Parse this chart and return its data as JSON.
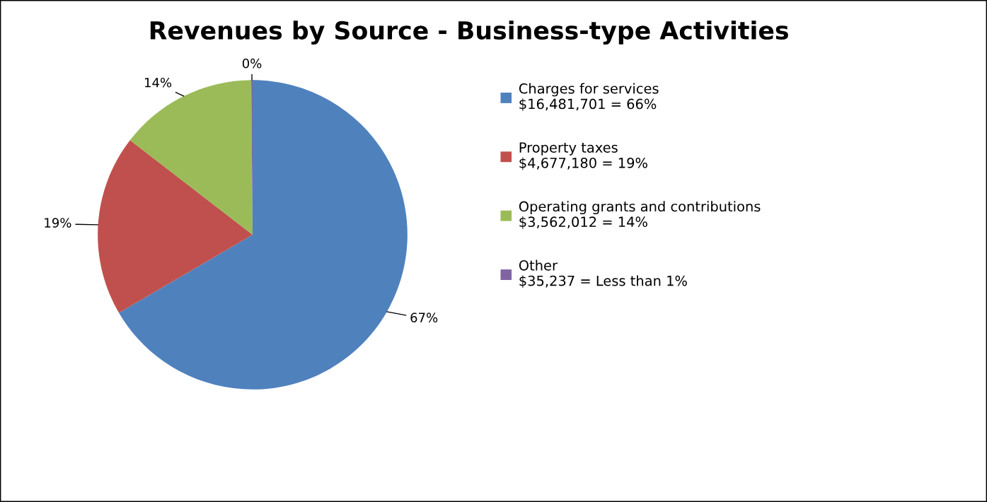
{
  "chart_data": {
    "type": "pie",
    "title": "Revenues by Source - Business-type Activities",
    "categories": [
      "Charges for services\n$16,481,701 = 66%",
      "Property taxes\n$4,677,180 = 19%",
      "Operating grants and contributions\n$3,562,012 = 14%",
      "Other\n$35,237 = Less than 1%"
    ],
    "values": [
      66.58,
      18.89,
      14.39,
      0.14
    ],
    "colors": [
      "#4f81bd",
      "#c0504d",
      "#9bbb59",
      "#8064a2"
    ],
    "value_labels": [
      "67%",
      "19%",
      "14%",
      "0%"
    ],
    "legend": "right"
  }
}
